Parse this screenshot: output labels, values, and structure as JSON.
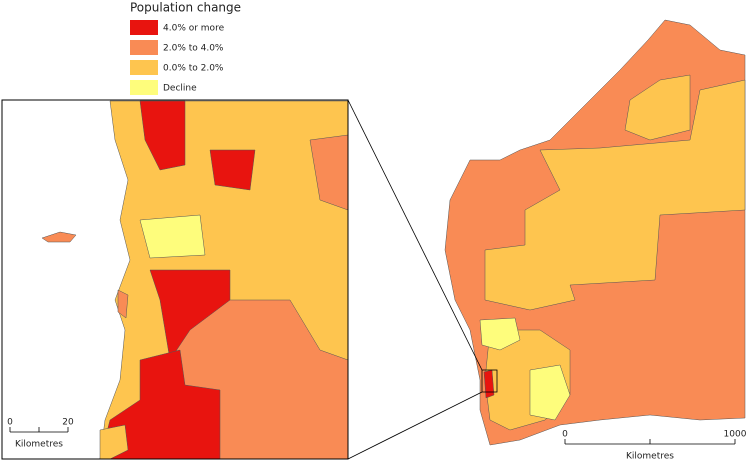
{
  "legend": {
    "title": "Population change",
    "items": [
      {
        "label": "4.0% or more",
        "color": "#e8140f"
      },
      {
        "label": "2.0% to 4.0%",
        "color": "#f98b55"
      },
      {
        "label": "0.0% to 2.0%",
        "color": "#fec54f"
      },
      {
        "label": "Decline",
        "color": "#fefd7c"
      }
    ]
  },
  "scale_bars": [
    {
      "ticks": [
        "0",
        "20"
      ],
      "unit": "Kilometres"
    },
    {
      "ticks": [
        "0",
        "1000"
      ],
      "unit": "Kilometres"
    }
  ]
}
